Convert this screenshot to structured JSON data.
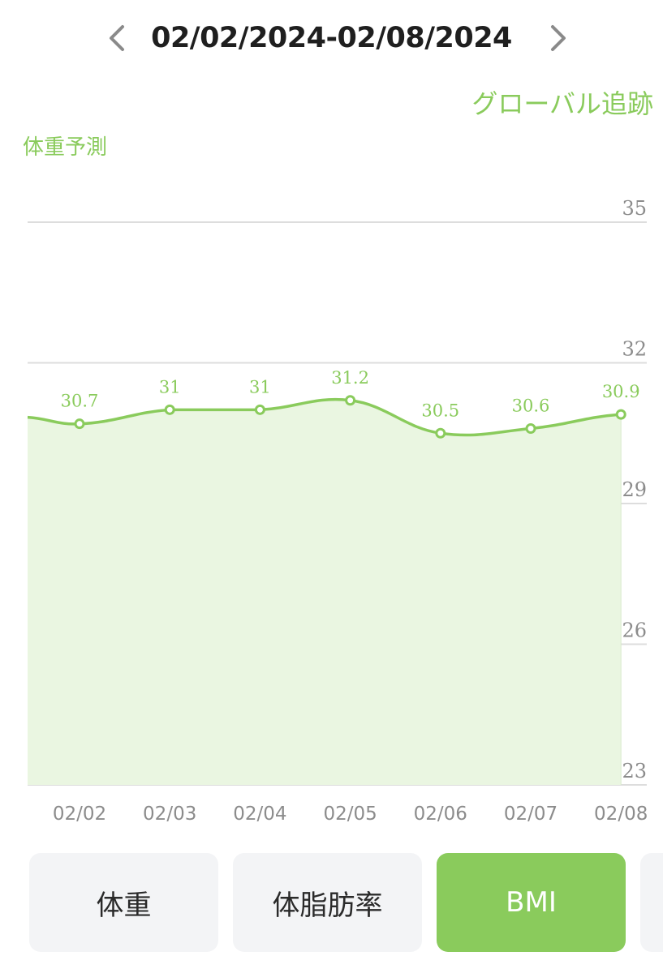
{
  "header": {
    "date_range": "02/02/2024-02/08/2024",
    "prev_icon": "chevron-left-icon",
    "next_icon": "chevron-right-icon"
  },
  "global_tracking_link": "グローバル追跡",
  "chart_title": "体重予測",
  "chart_data": {
    "type": "area",
    "categories": [
      "02/02",
      "02/03",
      "02/04",
      "02/05",
      "02/06",
      "02/07",
      "02/08"
    ],
    "series": [
      {
        "values": [
          30.7,
          31,
          31,
          31.2,
          30.5,
          30.6,
          30.9
        ]
      }
    ],
    "data_labels": [
      "30.7",
      "31",
      "31",
      "31.2",
      "30.5",
      "30.6",
      "30.9"
    ],
    "y_ticks": [
      "35",
      "32",
      "29",
      "26",
      "23"
    ],
    "ylim": [
      23,
      35
    ],
    "grid": true,
    "y_axis_side": "right",
    "line_color": "#8acb5c",
    "fill_color": "#eaf6e1",
    "grid_color": "#dddddd"
  },
  "tabs": [
    {
      "label": "体重",
      "active": false
    },
    {
      "label": "体脂肪率",
      "active": false
    },
    {
      "label": "BMI",
      "active": true
    },
    {
      "label": "",
      "active": false
    }
  ],
  "colors": {
    "accent": "#8acb5c",
    "tab_bg": "#f3f4f6"
  }
}
